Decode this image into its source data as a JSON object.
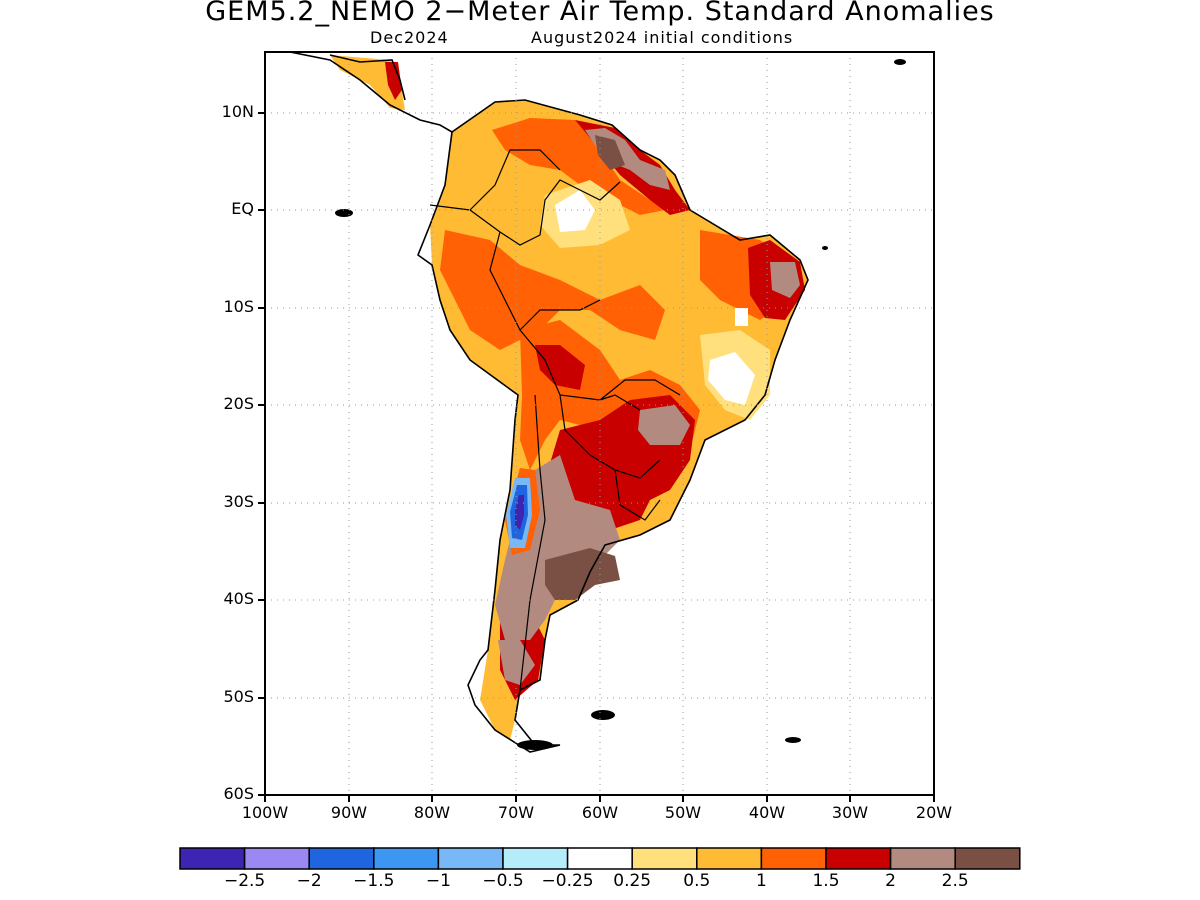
{
  "title": "GEM5.2_NEMO 2−Meter Air Temp. Standard Anomalies",
  "subtitle_left": "Dec2024",
  "subtitle_right": "August2024 initial conditions",
  "lat_labels": [
    "10N",
    "EQ",
    "10S",
    "20S",
    "30S",
    "40S",
    "50S",
    "60S"
  ],
  "lon_labels": [
    "100W",
    "90W",
    "80W",
    "70W",
    "60W",
    "50W",
    "40W",
    "30W",
    "20W"
  ],
  "colorbar": {
    "colors": [
      "#3d24b3",
      "#9b88f2",
      "#1f65e0",
      "#3c96f2",
      "#78b8f7",
      "#b4ecf9",
      "#ffffff",
      "#ffe07d",
      "#ffbb33",
      "#ff6104",
      "#c80000",
      "#b38a80",
      "#7a5044"
    ],
    "labels": [
      "−2.5",
      "−2",
      "−1.5",
      "−1",
      "−0.5",
      "−0.25",
      "0.25",
      "0.5",
      "1",
      "1.5",
      "2",
      "2.5"
    ]
  },
  "map_legend": {
    "lon_range": [
      -100,
      -20
    ],
    "lat_range": [
      -60,
      15
    ]
  }
}
